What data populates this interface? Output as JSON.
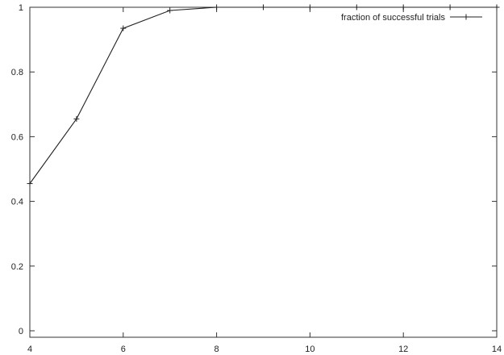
{
  "chart_data": {
    "type": "line",
    "title": "",
    "xlabel": "",
    "ylabel": "",
    "xlim": [
      4,
      14
    ],
    "ylim": [
      -0.02,
      1.0
    ],
    "xticks": [
      4,
      6,
      8,
      10,
      12,
      14
    ],
    "yticks": [
      0,
      0.2,
      0.4,
      0.6,
      0.8,
      1
    ],
    "grid": false,
    "legend_position": "top-right",
    "series": [
      {
        "name": "fraction of successful trials",
        "x": [
          4,
          5,
          6,
          7,
          8,
          9,
          10,
          11,
          12,
          13,
          14
        ],
        "y": [
          0.455,
          0.655,
          0.935,
          0.99,
          1.0,
          1.0,
          1.0,
          1.0,
          1.0,
          1.0,
          1.0
        ],
        "color": "#222222",
        "marker": "plus"
      }
    ]
  }
}
